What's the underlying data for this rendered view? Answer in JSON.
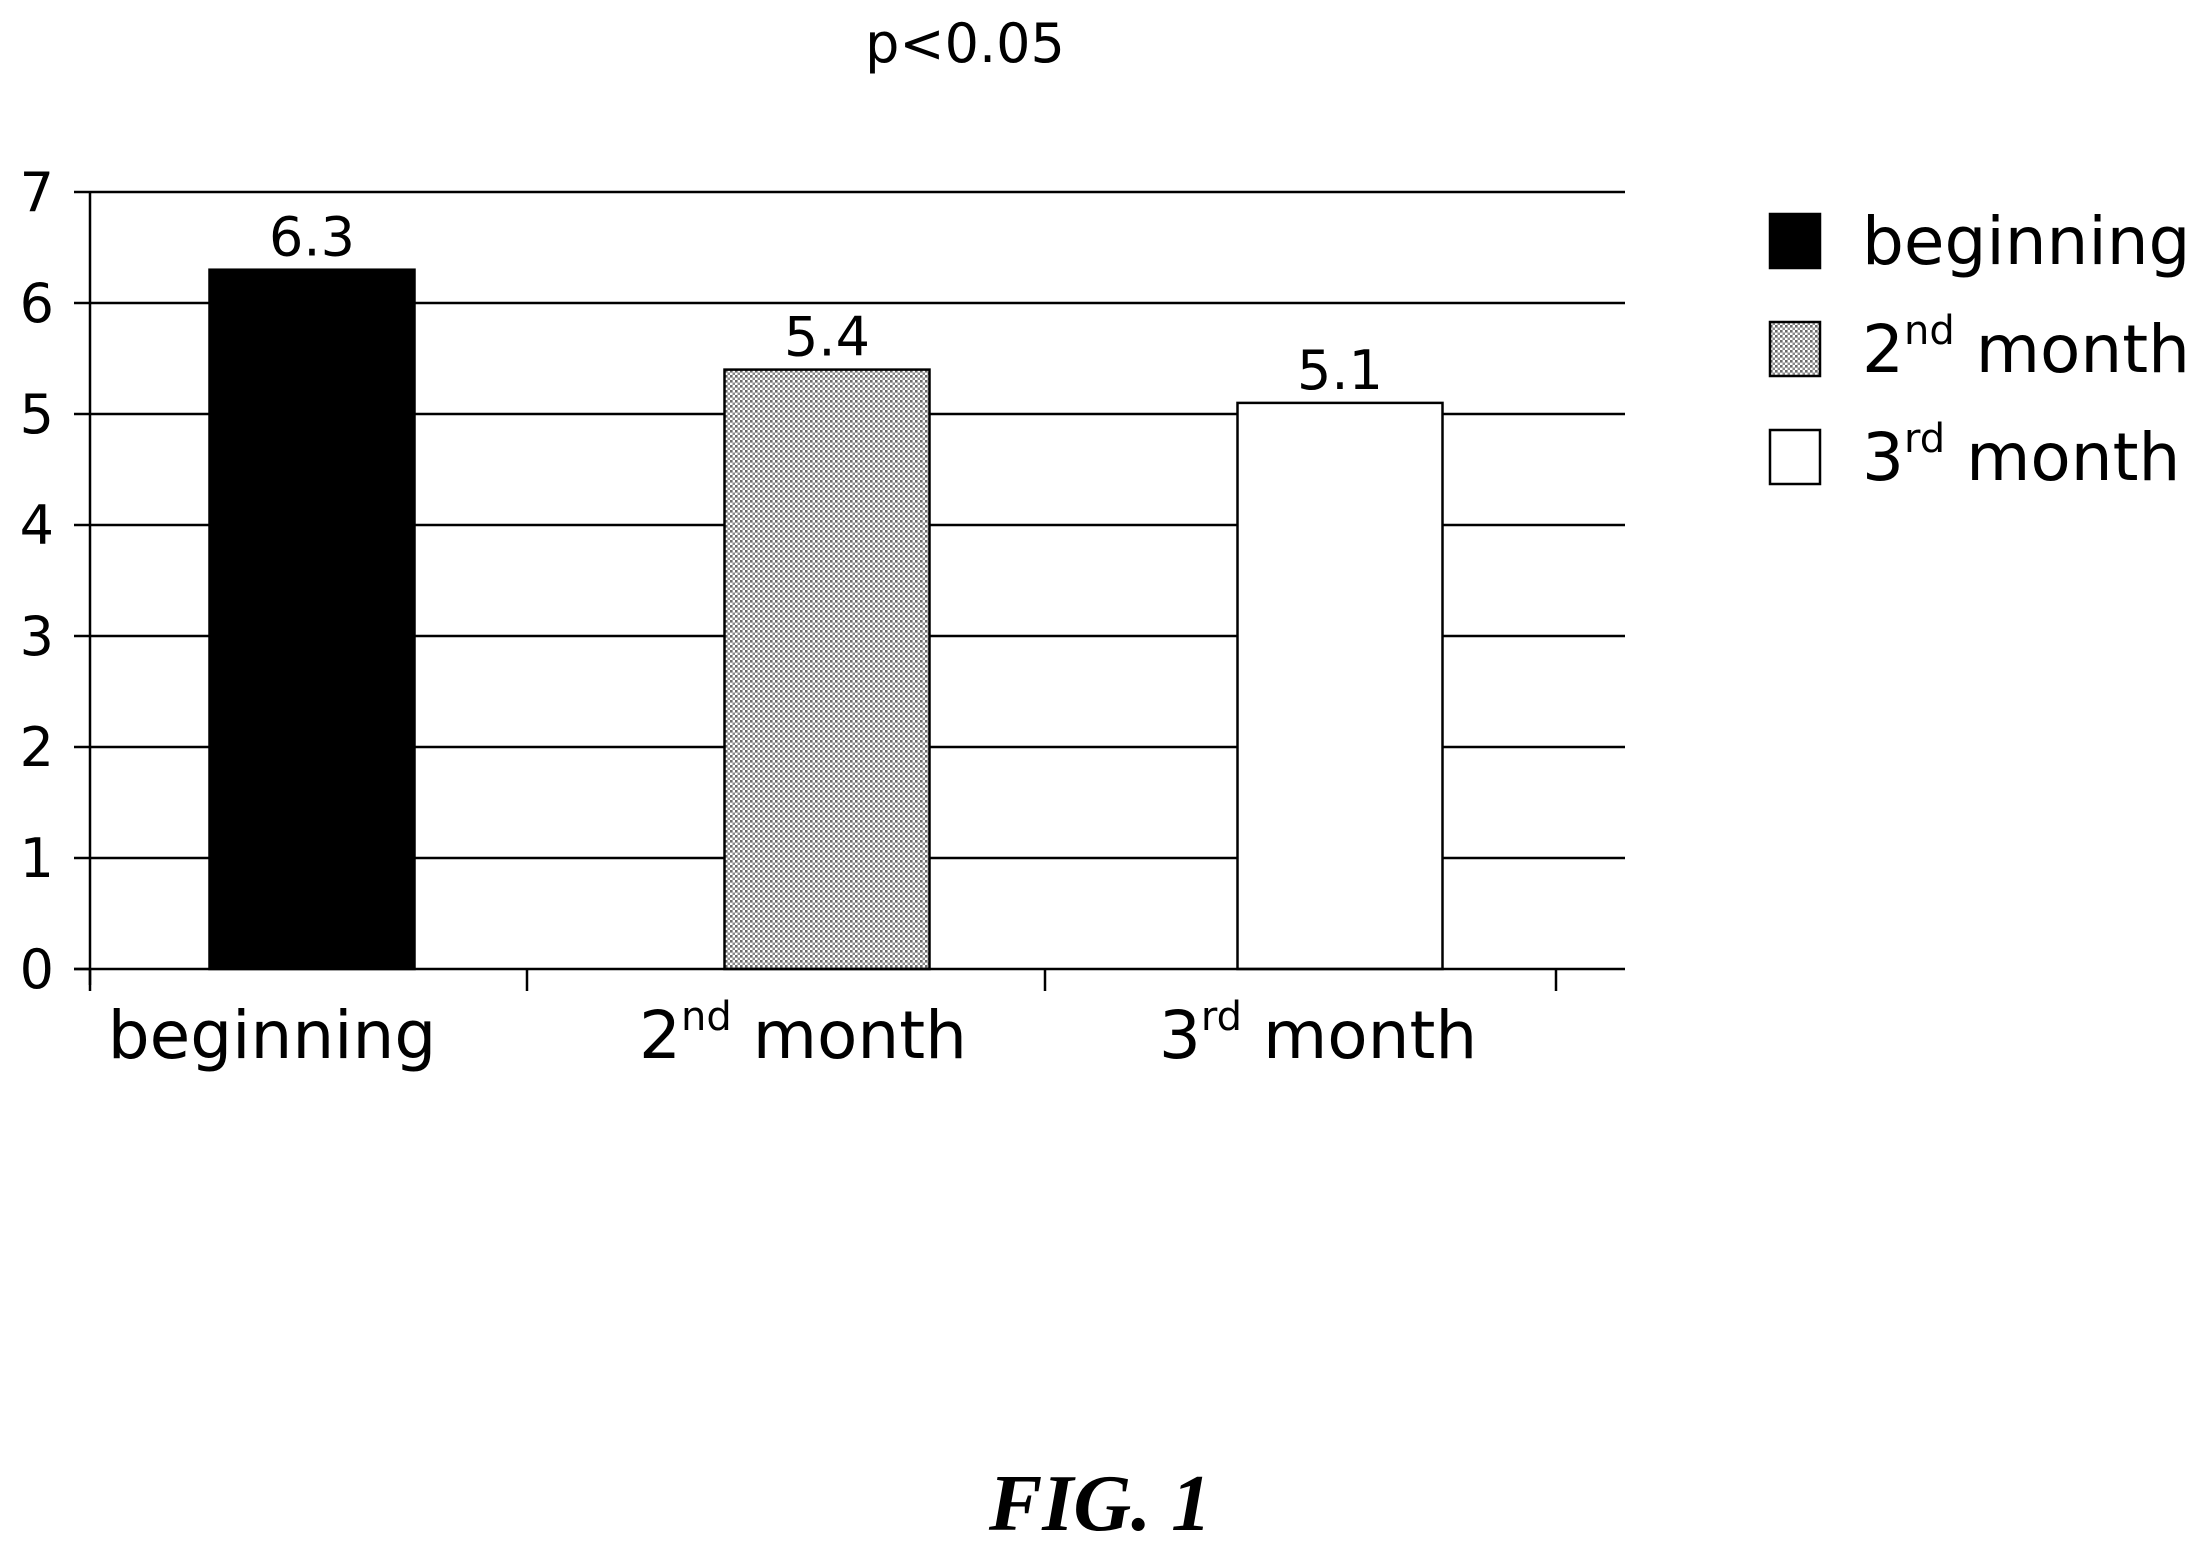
{
  "chart_data": {
    "type": "bar",
    "title": "p<0.05",
    "categories": [
      {
        "base": "beginning",
        "sup": ""
      },
      {
        "base": "2",
        "sup": "nd",
        "rest": " month"
      },
      {
        "base": "3",
        "sup": "rd",
        "rest": " month"
      }
    ],
    "values": [
      6.3,
      5.4,
      5.1
    ],
    "value_labels": [
      "6.3",
      "5.4",
      "5.1"
    ],
    "fills": [
      "#000000",
      "pattern-dots",
      "#ffffff"
    ],
    "ylim": [
      0,
      7
    ],
    "yticks": [
      "0",
      "1",
      "2",
      "3",
      "4",
      "5",
      "6",
      "7"
    ],
    "grid": true,
    "legend_position": "right",
    "legend": [
      {
        "base": "beginning",
        "sup": "",
        "rest": ""
      },
      {
        "base": "2",
        "sup": "nd",
        "rest": " month"
      },
      {
        "base": "3",
        "sup": "rd",
        "rest": " month"
      }
    ]
  },
  "figure_label": "FIG. 1"
}
